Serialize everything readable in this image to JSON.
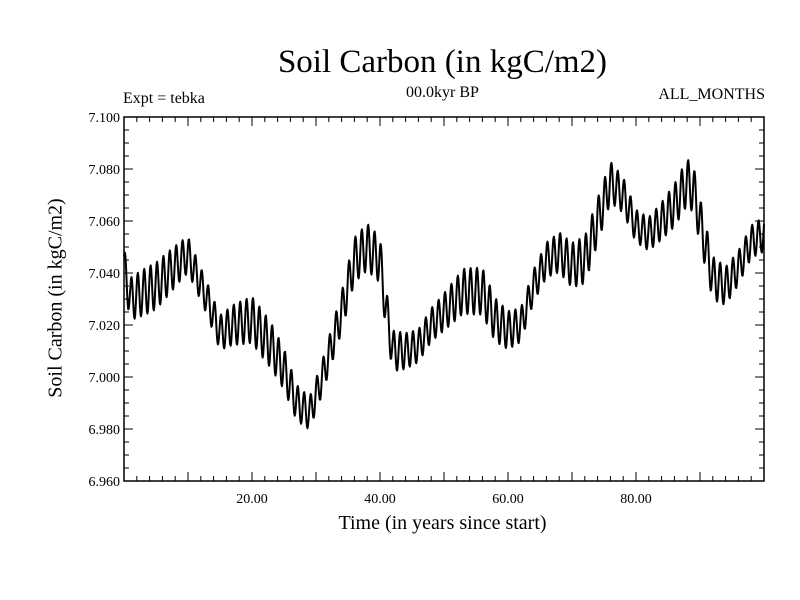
{
  "chart_data": {
    "type": "line",
    "title": "Soil Carbon (in kgC/m2)",
    "subtitle": "00.0kyr BP",
    "experiment": "Expt = tebka",
    "period": "ALL_MONTHS",
    "xlabel": "Time (in years since start)",
    "ylabel": "Soil Carbon (in kgC/m2)",
    "xlim": [
      0,
      100
    ],
    "ylim": [
      6.96,
      7.1
    ],
    "x_ticks": [
      20,
      40,
      60,
      80
    ],
    "x_tick_labels": [
      "20.00",
      "40.00",
      "60.00",
      "80.00"
    ],
    "y_ticks": [
      6.96,
      6.98,
      7.0,
      7.02,
      7.04,
      7.06,
      7.08,
      7.1
    ],
    "y_tick_labels": [
      "6.960",
      "6.980",
      "7.000",
      "7.020",
      "7.040",
      "7.060",
      "7.080",
      "7.100"
    ],
    "series": [
      {
        "name": "Soil Carbon",
        "seasonal_amplitude": 0.009,
        "samples_per_year": 12,
        "trend": {
          "x": [
            0,
            1,
            5,
            9,
            10,
            13,
            15,
            17,
            20,
            23,
            25,
            27,
            29,
            31,
            34,
            36,
            38,
            40,
            41,
            42,
            44,
            46,
            48,
            50,
            53,
            56,
            58,
            60,
            62,
            64,
            66,
            68,
            70,
            72,
            74,
            76,
            78,
            80,
            82,
            84,
            86,
            88,
            89,
            90,
            92,
            94,
            96,
            98,
            100
          ],
          "y": [
            7.042,
            7.03,
            7.035,
            7.045,
            7.047,
            7.03,
            7.017,
            7.02,
            7.022,
            7.012,
            7.003,
            6.99,
            6.986,
            7.0,
            7.025,
            7.045,
            7.05,
            7.045,
            7.025,
            7.01,
            7.01,
            7.012,
            7.02,
            7.025,
            7.033,
            7.033,
            7.022,
            7.018,
            7.02,
            7.035,
            7.045,
            7.048,
            7.043,
            7.045,
            7.06,
            7.075,
            7.07,
            7.058,
            7.055,
            7.06,
            7.066,
            7.075,
            7.072,
            7.06,
            7.038,
            7.035,
            7.042,
            7.052,
            7.055
          ]
        }
      }
    ]
  }
}
